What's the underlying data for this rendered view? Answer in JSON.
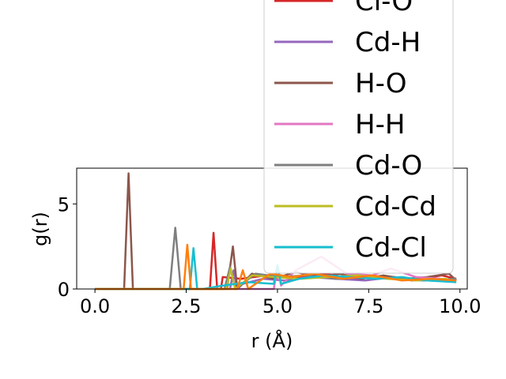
{
  "chart_data": {
    "type": "line",
    "xlabel": "r (Å)",
    "ylabel": "g(r)",
    "xlim": [
      -0.5,
      10.2
    ],
    "ylim": [
      0,
      7.1
    ],
    "xticks": [
      {
        "value": 0.0,
        "label": "0.0"
      },
      {
        "value": 2.5,
        "label": "2.5"
      },
      {
        "value": 5.0,
        "label": "5.0"
      },
      {
        "value": 7.5,
        "label": "7.5"
      },
      {
        "value": 10.0,
        "label": "10.0"
      }
    ],
    "yticks": [
      {
        "value": 0,
        "label": "0"
      },
      {
        "value": 5,
        "label": "5"
      }
    ],
    "grid": false,
    "legend_position": "top-right",
    "series": [
      {
        "name": "Cl-O",
        "color": "#d62728",
        "x": [
          0,
          3.15,
          3.25,
          3.35,
          3.45,
          3.5,
          4.0,
          4.7,
          5.5,
          6.3,
          7.1,
          7.9,
          8.7,
          9.5,
          9.9
        ],
        "y": [
          0,
          0,
          3.3,
          0,
          0,
          0.7,
          0.6,
          0.8,
          0.7,
          0.9,
          0.6,
          0.7,
          0.5,
          0.8,
          0.6
        ]
      },
      {
        "name": "Cd-H",
        "color": "#9467bd",
        "x": [
          0,
          3.7,
          3.8,
          3.9,
          4.05,
          4.6,
          5.2,
          5.9,
          6.6,
          7.4,
          8.2,
          9.0,
          9.9
        ],
        "y": [
          0,
          0,
          1.1,
          0,
          0.3,
          0.6,
          0.5,
          0.7,
          0.6,
          0.5,
          0.7,
          0.5,
          0.6
        ]
      },
      {
        "name": "H-O",
        "color": "#8c564b",
        "x": [
          0,
          0.8,
          0.92,
          1.04,
          1.1,
          3.62,
          3.78,
          3.9,
          4.3,
          4.9,
          5.5,
          6.1,
          6.7,
          7.3,
          7.9,
          8.5,
          9.1,
          9.7,
          9.9
        ],
        "y": [
          0,
          0,
          6.8,
          0,
          0,
          0,
          2.5,
          0,
          0.9,
          0.6,
          1.0,
          0.7,
          0.9,
          0.6,
          0.8,
          0.6,
          0.7,
          0.9,
          0.5
        ]
      },
      {
        "name": "H-H",
        "color": "#e377c2",
        "x": [
          0,
          4.9,
          5.0,
          5.1,
          5.5,
          6.2,
          6.9,
          7.6,
          8.1,
          8.8,
          9.5,
          9.9
        ],
        "y": [
          0,
          0,
          1.3,
          0.2,
          1.1,
          1.9,
          0.9,
          0.8,
          1.2,
          0.7,
          0.6,
          0.5
        ]
      },
      {
        "name": "Cd-O",
        "color": "#7f7f7f",
        "x": [
          0,
          2.05,
          2.2,
          2.35,
          2.5,
          3.55,
          3.7,
          3.85,
          4.4,
          5.1,
          5.8,
          6.6,
          7.4,
          8.2,
          9.0,
          9.9
        ],
        "y": [
          0,
          0,
          3.6,
          0,
          0,
          0,
          1.3,
          0,
          0.9,
          0.7,
          0.8,
          0.6,
          0.7,
          0.6,
          0.5,
          0.6
        ]
      },
      {
        "name": "Cd-Cd",
        "color": "#bcbd22",
        "x": [
          0,
          3.6,
          3.72,
          3.84,
          4.3,
          4.9,
          5.6,
          6.4,
          7.2,
          8.0,
          8.8,
          9.6,
          9.9
        ],
        "y": [
          0,
          0,
          1.2,
          0,
          0.8,
          0.7,
          0.6,
          0.7,
          0.8,
          0.6,
          0.5,
          0.6,
          0.4
        ]
      },
      {
        "name": "Cd-Cl",
        "color": "#17becf",
        "x": [
          0,
          2.6,
          2.7,
          2.8,
          2.95,
          3.5,
          4.2,
          4.9,
          5.0,
          5.1,
          5.6,
          6.3,
          7.0,
          7.7,
          8.4,
          9.1,
          9.9
        ],
        "y": [
          0,
          0,
          2.4,
          0,
          0,
          0.2,
          0.4,
          0.3,
          1.4,
          0.3,
          0.6,
          0.8,
          0.7,
          0.6,
          0.7,
          0.5,
          0.4
        ]
      },
      {
        "name": "",
        "color": "#ff7f0e",
        "x": [
          0,
          2.43,
          2.53,
          2.63,
          2.8,
          3.9,
          4.05,
          4.2,
          4.8,
          5.4,
          6.0,
          6.8,
          7.6,
          8.4,
          9.2,
          9.9
        ],
        "y": [
          0,
          0,
          2.6,
          0,
          0,
          0,
          1.1,
          0,
          0.9,
          0.7,
          0.9,
          0.6,
          0.8,
          0.5,
          0.6,
          0.5
        ]
      }
    ],
    "legend_entries": [
      {
        "label": "Cl-O",
        "color": "#d62728"
      },
      {
        "label": "Cd-H",
        "color": "#9467bd"
      },
      {
        "label": "H-O",
        "color": "#8c564b"
      },
      {
        "label": "H-H",
        "color": "#e377c2"
      },
      {
        "label": "Cd-O",
        "color": "#7f7f7f"
      },
      {
        "label": "Cd-Cd",
        "color": "#bcbd22"
      },
      {
        "label": "Cd-Cl",
        "color": "#17becf"
      }
    ]
  }
}
